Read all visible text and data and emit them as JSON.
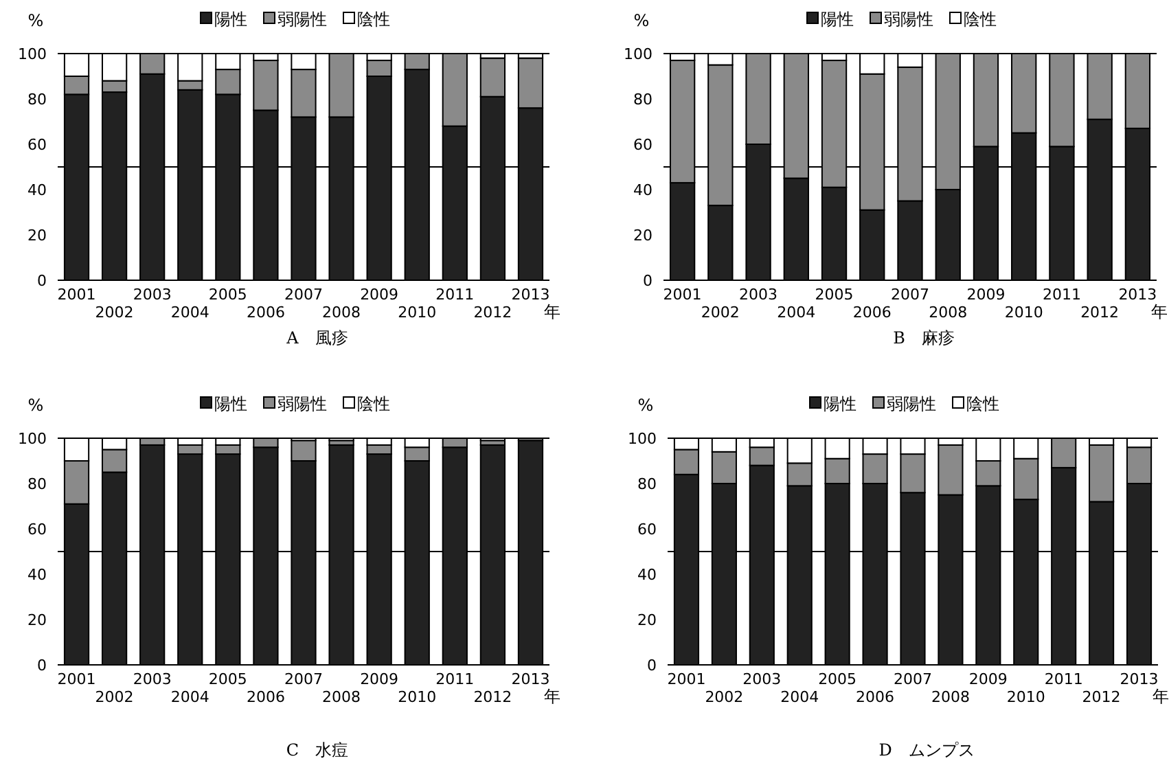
{
  "chart_data": [
    {
      "type": "bar",
      "stacked": true,
      "title": "A　風疹",
      "ylabel": "%",
      "xlabel": "年",
      "legend": "top",
      "ylim": [
        0,
        100
      ],
      "yticks": [
        0,
        20,
        40,
        60,
        80,
        100
      ],
      "categories": [
        "2001",
        "2002",
        "2003",
        "2004",
        "2005",
        "2006",
        "2007",
        "2008",
        "2009",
        "2010",
        "2011",
        "2012",
        "2013"
      ],
      "ref_lines": [
        {
          "axis": "y",
          "value": 50,
          "color": "#000000"
        },
        {
          "axis": "y",
          "value": 100,
          "color": "#000000"
        }
      ],
      "series": [
        {
          "name": "陽性",
          "color": "#222222",
          "values": [
            82,
            83,
            91,
            84,
            82,
            75,
            72,
            72,
            90,
            93,
            68,
            81,
            76
          ]
        },
        {
          "name": "弱陽性",
          "color": "#8a8a8a",
          "values": [
            8,
            5,
            9,
            4,
            11,
            22,
            21,
            28,
            7,
            7,
            32,
            17,
            22
          ]
        },
        {
          "name": "陰性",
          "color": "#ffffff",
          "values": [
            10,
            12,
            0,
            12,
            7,
            3,
            7,
            0,
            3,
            0,
            0,
            2,
            2
          ]
        }
      ]
    },
    {
      "type": "bar",
      "stacked": true,
      "title": "B　麻疹",
      "ylabel": "%",
      "xlabel": "年",
      "legend": "top",
      "ylim": [
        0,
        100
      ],
      "yticks": [
        0,
        20,
        40,
        60,
        80,
        100
      ],
      "categories": [
        "2001",
        "2002",
        "2003",
        "2004",
        "2005",
        "2006",
        "2007",
        "2008",
        "2009",
        "2010",
        "2011",
        "2012",
        "2013"
      ],
      "ref_lines": [
        {
          "axis": "y",
          "value": 50,
          "color": "#000000"
        },
        {
          "axis": "y",
          "value": 100,
          "color": "#000000"
        }
      ],
      "series": [
        {
          "name": "陽性",
          "color": "#222222",
          "values": [
            43,
            33,
            60,
            45,
            41,
            31,
            35,
            40,
            59,
            65,
            59,
            71,
            67
          ]
        },
        {
          "name": "弱陽性",
          "color": "#8a8a8a",
          "values": [
            54,
            62,
            40,
            55,
            56,
            60,
            59,
            60,
            41,
            35,
            41,
            29,
            33
          ]
        },
        {
          "name": "陰性",
          "color": "#ffffff",
          "values": [
            3,
            5,
            0,
            0,
            3,
            9,
            6,
            0,
            0,
            0,
            0,
            0,
            0
          ]
        }
      ]
    },
    {
      "type": "bar",
      "stacked": true,
      "title": "C　水痘",
      "ylabel": "%",
      "xlabel": "年",
      "legend": "top",
      "ylim": [
        0,
        100
      ],
      "yticks": [
        0,
        20,
        40,
        60,
        80,
        100
      ],
      "categories": [
        "2001",
        "2002",
        "2003",
        "2004",
        "2005",
        "2006",
        "2007",
        "2008",
        "2009",
        "2010",
        "2011",
        "2012",
        "2013"
      ],
      "ref_lines": [
        {
          "axis": "y",
          "value": 50,
          "color": "#000000"
        },
        {
          "axis": "y",
          "value": 100,
          "color": "#000000"
        }
      ],
      "series": [
        {
          "name": "陽性",
          "color": "#222222",
          "values": [
            71,
            85,
            97,
            93,
            93,
            96,
            90,
            97,
            93,
            90,
            96,
            97,
            99
          ]
        },
        {
          "name": "弱陽性",
          "color": "#8a8a8a",
          "values": [
            19,
            10,
            3,
            4,
            4,
            4,
            9,
            2,
            4,
            6,
            4,
            2,
            1
          ]
        },
        {
          "name": "陰性",
          "color": "#ffffff",
          "values": [
            10,
            5,
            0,
            3,
            3,
            0,
            1,
            1,
            3,
            4,
            0,
            1,
            0
          ]
        }
      ]
    },
    {
      "type": "bar",
      "stacked": true,
      "title": "D　ムンプス",
      "ylabel": "%",
      "xlabel": "年",
      "legend": "top",
      "ylim": [
        0,
        100
      ],
      "yticks": [
        0,
        20,
        40,
        60,
        80,
        100
      ],
      "categories": [
        "2001",
        "2002",
        "2003",
        "2004",
        "2005",
        "2006",
        "2007",
        "2008",
        "2009",
        "2010",
        "2011",
        "2012",
        "2013"
      ],
      "ref_lines": [
        {
          "axis": "y",
          "value": 50,
          "color": "#000000"
        },
        {
          "axis": "y",
          "value": 100,
          "color": "#000000"
        }
      ],
      "series": [
        {
          "name": "陽性",
          "color": "#222222",
          "values": [
            84,
            80,
            88,
            79,
            80,
            80,
            76,
            75,
            79,
            73,
            87,
            72,
            80
          ]
        },
        {
          "name": "弱陽性",
          "color": "#8a8a8a",
          "values": [
            11,
            14,
            8,
            10,
            11,
            13,
            17,
            22,
            11,
            18,
            13,
            25,
            16
          ]
        },
        {
          "name": "陰性",
          "color": "#ffffff",
          "values": [
            5,
            6,
            4,
            11,
            9,
            7,
            7,
            3,
            10,
            9,
            0,
            3,
            4
          ]
        }
      ]
    }
  ]
}
